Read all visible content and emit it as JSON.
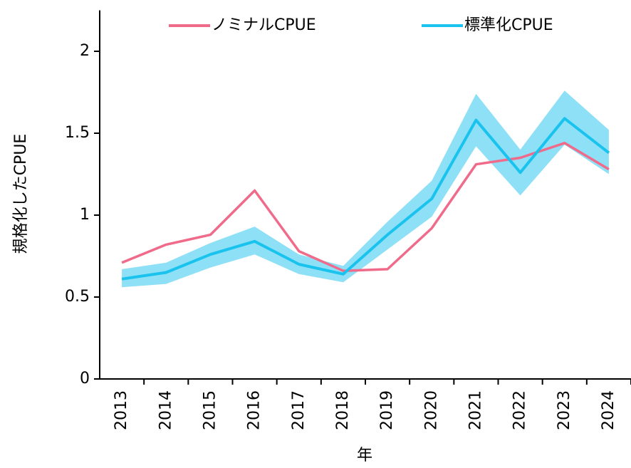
{
  "chart_data": {
    "type": "line",
    "x_label": "年",
    "y_label": "規格化したCPUE",
    "categories": [
      "2013",
      "2014",
      "2015",
      "2016",
      "2017",
      "2018",
      "2019",
      "2020",
      "2021",
      "2022",
      "2023",
      "2024"
    ],
    "series": [
      {
        "name": "ノミナルCPUE",
        "color": "#f06a8a",
        "values": [
          0.71,
          0.82,
          0.88,
          1.15,
          0.78,
          0.66,
          0.67,
          0.92,
          1.31,
          1.35,
          1.44,
          1.28
        ]
      },
      {
        "name": "標準化CPUE",
        "color": "#19c3ee",
        "band_color": "#8ee0f7",
        "values": [
          0.61,
          0.65,
          0.76,
          0.84,
          0.7,
          0.64,
          0.88,
          1.1,
          1.58,
          1.26,
          1.59,
          1.38
        ],
        "lower": [
          0.56,
          0.58,
          0.68,
          0.76,
          0.64,
          0.59,
          0.79,
          0.99,
          1.42,
          1.12,
          1.43,
          1.25
        ],
        "upper": [
          0.67,
          0.71,
          0.83,
          0.93,
          0.76,
          0.69,
          0.96,
          1.21,
          1.74,
          1.4,
          1.76,
          1.52
        ]
      }
    ],
    "ylim": [
      0,
      2.25
    ],
    "yticks": [
      0,
      0.5,
      1,
      1.5,
      2
    ]
  }
}
